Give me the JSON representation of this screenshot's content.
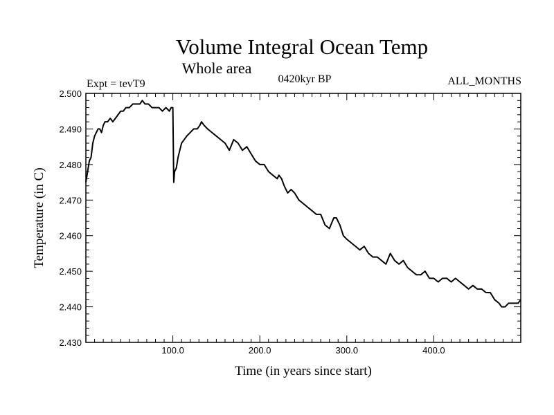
{
  "chart_data": {
    "type": "line",
    "title": "Volume Integral Ocean Temp",
    "subtitle": "Whole area",
    "left_label": "Expt = tevT9",
    "center_label": "0420kyr BP",
    "right_label": "ALL_MONTHS",
    "xlabel": "Time (in years since start)",
    "ylabel": "Temperature (in C)",
    "xlim": [
      0,
      500
    ],
    "ylim": [
      2.43,
      2.5
    ],
    "x_ticks": [
      {
        "value": 100,
        "label": "100.0"
      },
      {
        "value": 200,
        "label": "200.0"
      },
      {
        "value": 300,
        "label": "300.0"
      },
      {
        "value": 400,
        "label": "400.0"
      }
    ],
    "y_ticks": [
      {
        "value": 2.43,
        "label": "2.430"
      },
      {
        "value": 2.44,
        "label": "2.440"
      },
      {
        "value": 2.45,
        "label": "2.450"
      },
      {
        "value": 2.46,
        "label": "2.460"
      },
      {
        "value": 2.47,
        "label": "2.470"
      },
      {
        "value": 2.48,
        "label": "2.480"
      },
      {
        "value": 2.49,
        "label": "2.490"
      },
      {
        "value": 2.5,
        "label": "2.500"
      }
    ],
    "grid": false,
    "series": [
      {
        "color": "#000000",
        "x": [
          0,
          2,
          4,
          6,
          8,
          10,
          12,
          14,
          16,
          18,
          20,
          22,
          25,
          28,
          31,
          34,
          37,
          40,
          43,
          46,
          50,
          54,
          58,
          62,
          65,
          68,
          72,
          76,
          80,
          84,
          88,
          92,
          96,
          98,
          99,
          100,
          101,
          102,
          104,
          106,
          108,
          110,
          113,
          116,
          120,
          124,
          128,
          131,
          133,
          136,
          140,
          145,
          150,
          155,
          160,
          165,
          170,
          175,
          180,
          185,
          190,
          195,
          200,
          205,
          210,
          215,
          220,
          222,
          225,
          228,
          232,
          236,
          240,
          245,
          250,
          255,
          260,
          265,
          270,
          275,
          280,
          285,
          288,
          292,
          296,
          300,
          305,
          310,
          315,
          320,
          325,
          330,
          335,
          340,
          345,
          350,
          355,
          360,
          365,
          370,
          375,
          380,
          385,
          390,
          395,
          400,
          405,
          410,
          415,
          420,
          425,
          430,
          435,
          440,
          445,
          450,
          455,
          460,
          465,
          470,
          475,
          478,
          482,
          486,
          490,
          494,
          497,
          500
        ],
        "y": [
          2.475,
          2.478,
          2.481,
          2.482,
          2.486,
          2.488,
          2.489,
          2.49,
          2.49,
          2.489,
          2.491,
          2.492,
          2.492,
          2.493,
          2.492,
          2.493,
          2.494,
          2.495,
          2.495,
          2.496,
          2.496,
          2.497,
          2.497,
          2.497,
          2.498,
          2.497,
          2.497,
          2.496,
          2.496,
          2.496,
          2.495,
          2.496,
          2.495,
          2.496,
          2.496,
          2.496,
          2.475,
          2.478,
          2.479,
          2.482,
          2.484,
          2.486,
          2.487,
          2.488,
          2.489,
          2.49,
          2.49,
          2.491,
          2.492,
          2.491,
          2.49,
          2.489,
          2.488,
          2.487,
          2.486,
          2.484,
          2.487,
          2.486,
          2.484,
          2.485,
          2.483,
          2.481,
          2.48,
          2.48,
          2.478,
          2.477,
          2.476,
          2.477,
          2.476,
          2.474,
          2.472,
          2.473,
          2.472,
          2.47,
          2.469,
          2.468,
          2.467,
          2.466,
          2.466,
          2.463,
          2.462,
          2.465,
          2.465,
          2.463,
          2.46,
          2.459,
          2.458,
          2.457,
          2.456,
          2.457,
          2.455,
          2.454,
          2.454,
          2.453,
          2.452,
          2.455,
          2.453,
          2.452,
          2.453,
          2.451,
          2.45,
          2.449,
          2.449,
          2.45,
          2.448,
          2.448,
          2.447,
          2.448,
          2.448,
          2.447,
          2.448,
          2.447,
          2.446,
          2.445,
          2.446,
          2.445,
          2.445,
          2.444,
          2.444,
          2.442,
          2.441,
          2.44,
          2.44,
          2.441,
          2.441,
          2.441,
          2.441,
          2.442
        ]
      }
    ]
  }
}
